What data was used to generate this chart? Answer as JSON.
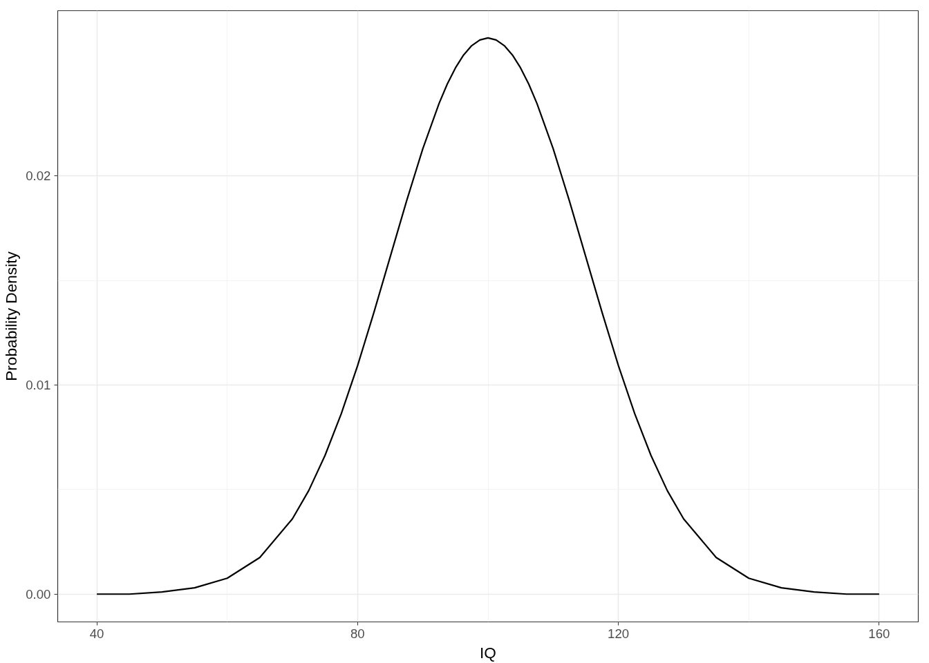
{
  "chart_data": {
    "type": "line",
    "xlabel": "IQ",
    "ylabel": "Probability Density",
    "x": [
      40,
      45,
      50,
      55,
      60,
      65,
      70,
      72.5,
      75,
      77.5,
      80,
      82.5,
      85,
      87.5,
      90,
      92.5,
      93.75,
      95,
      96.25,
      97.5,
      98.75,
      100,
      101.25,
      102.5,
      103.75,
      105,
      106.25,
      107.5,
      110,
      112.5,
      115,
      117.5,
      120,
      122.5,
      125,
      127.5,
      130,
      135,
      140,
      145,
      150,
      155,
      160
    ],
    "series": [
      {
        "color": "#000000",
        "values": [
          0,
          0,
          0.0001,
          0.0003,
          0.00076,
          0.00175,
          0.0036,
          0.00495,
          0.00663,
          0.00863,
          0.01093,
          0.01347,
          0.01613,
          0.01879,
          0.0213,
          0.02347,
          0.02439,
          0.02516,
          0.02578,
          0.02623,
          0.0265,
          0.0266,
          0.0265,
          0.02623,
          0.02578,
          0.02516,
          0.02439,
          0.02347,
          0.0213,
          0.01879,
          0.01613,
          0.01347,
          0.01093,
          0.00863,
          0.00663,
          0.00495,
          0.0036,
          0.00175,
          0.00076,
          0.0003,
          0.0001,
          0,
          0
        ]
      }
    ],
    "xlim": [
      34,
      166
    ],
    "ylim": [
      -0.00133,
      0.0279
    ],
    "xticks": [
      40,
      80,
      120,
      160
    ],
    "yticks": [
      {
        "value": 0,
        "label": "0.00"
      },
      {
        "value": 0.01,
        "label": "0.01"
      },
      {
        "value": 0.02,
        "label": "0.02"
      }
    ],
    "grid": true,
    "line_style": "solid",
    "marker": "none"
  }
}
